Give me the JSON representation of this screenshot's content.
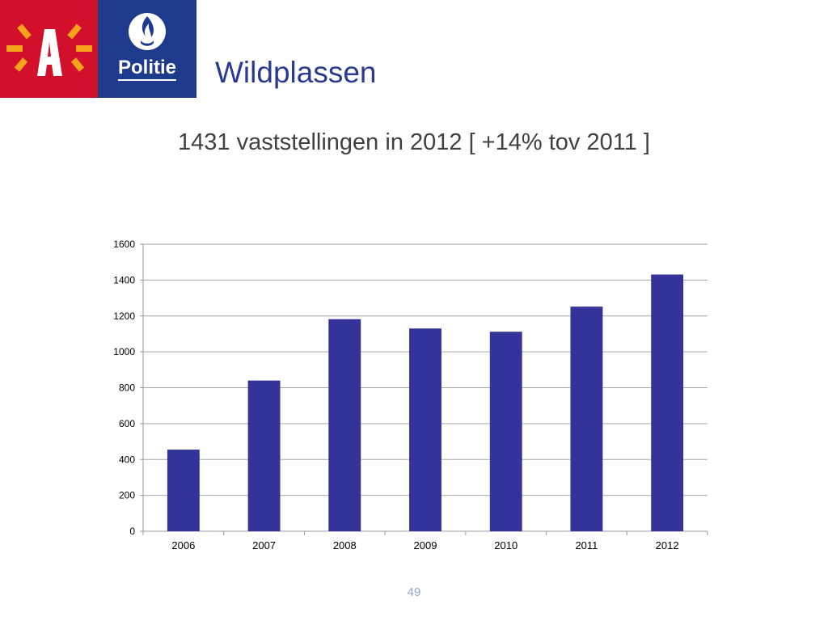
{
  "header": {
    "logo_politie_text": "Politie"
  },
  "slide": {
    "title": "Wildplassen",
    "subtitle": "1431 vaststellingen in 2012 [ +14% tov 2011 ]",
    "page_number": "49"
  },
  "colors": {
    "bar": "#333399",
    "title": "#2b3990",
    "logo_red": "#d3102b",
    "logo_orange": "#f7a21b",
    "logo_blue": "#1d3a8c"
  },
  "chart_data": {
    "type": "bar",
    "categories": [
      "2006",
      "2007",
      "2008",
      "2009",
      "2010",
      "2011",
      "2012"
    ],
    "values": [
      455,
      840,
      1182,
      1130,
      1112,
      1252,
      1431
    ],
    "y_ticks": [
      "0",
      "200",
      "400",
      "600",
      "800",
      "1000",
      "1200",
      "1400",
      "1600"
    ],
    "ylim": [
      0,
      1600
    ],
    "grid": true,
    "legend": "none"
  }
}
